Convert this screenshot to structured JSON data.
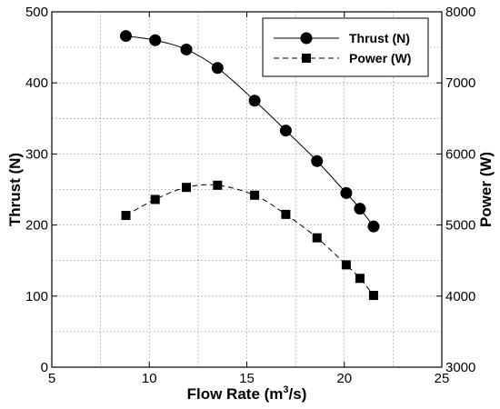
{
  "chart_data": {
    "type": "line",
    "x": [
      8.8,
      10.3,
      11.9,
      13.5,
      15.4,
      17.0,
      18.6,
      20.1,
      20.8,
      21.5
    ],
    "xlabel": "Flow Rate (m³/s)",
    "xlim": [
      5,
      25
    ],
    "xticks": [
      5,
      10,
      15,
      20,
      25
    ],
    "y_left": {
      "label": "Thrust (N)",
      "lim": [
        0,
        500
      ],
      "ticks": [
        0,
        100,
        200,
        300,
        400,
        500
      ]
    },
    "y_right": {
      "label": "Power (W)",
      "lim": [
        3000,
        8000
      ],
      "ticks": [
        3000,
        4000,
        5000,
        6000,
        7000,
        8000
      ]
    },
    "series": [
      {
        "name": "Thrust (N)",
        "axis": "left",
        "marker": "circle",
        "line": "solid",
        "values": [
          466,
          460,
          447,
          421,
          375,
          333,
          290,
          245,
          223,
          198
        ]
      },
      {
        "name": "Power (W)",
        "axis": "right",
        "marker": "square",
        "line": "dashed",
        "x": [
          8.8,
          10.3,
          11.9,
          13.5,
          15.4,
          17.0,
          18.6,
          20.1,
          20.8,
          21.5
        ],
        "values": [
          5135,
          5360,
          5530,
          5560,
          5420,
          5150,
          4820,
          4440,
          4250,
          4010
        ]
      }
    ],
    "grid": true,
    "legend": "top-right",
    "colors": {
      "line": "#000000",
      "grid": "#9a9a9a",
      "background": "#ffffff"
    }
  }
}
